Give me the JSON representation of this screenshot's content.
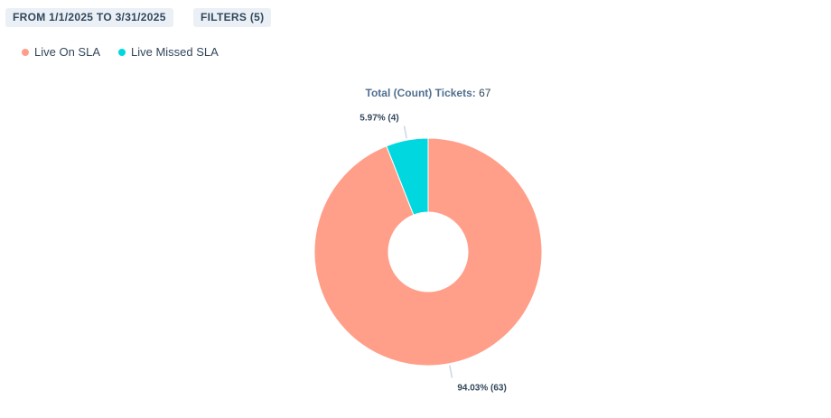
{
  "header": {
    "date_range_label": "FROM 1/1/2025 TO 3/31/2025",
    "filters_label": "FILTERS (5)"
  },
  "legend": [
    {
      "label": "Live On SLA",
      "color": "#ff9f8a"
    },
    {
      "label": "Live Missed SLA",
      "color": "#00d7df"
    }
  ],
  "total": {
    "label": "Total (Count) Tickets:",
    "value": "67"
  },
  "chart_data": {
    "type": "pie",
    "donut": true,
    "title": "",
    "slices": [
      {
        "name": "Live On SLA",
        "value": 63,
        "label": "94.03% (63)",
        "color": "#ff9f8a"
      },
      {
        "name": "Live Missed SLA",
        "value": 4,
        "label": "5.97% (4)",
        "color": "#00d7df"
      }
    ],
    "total": 67,
    "legend_position": "top-left"
  }
}
